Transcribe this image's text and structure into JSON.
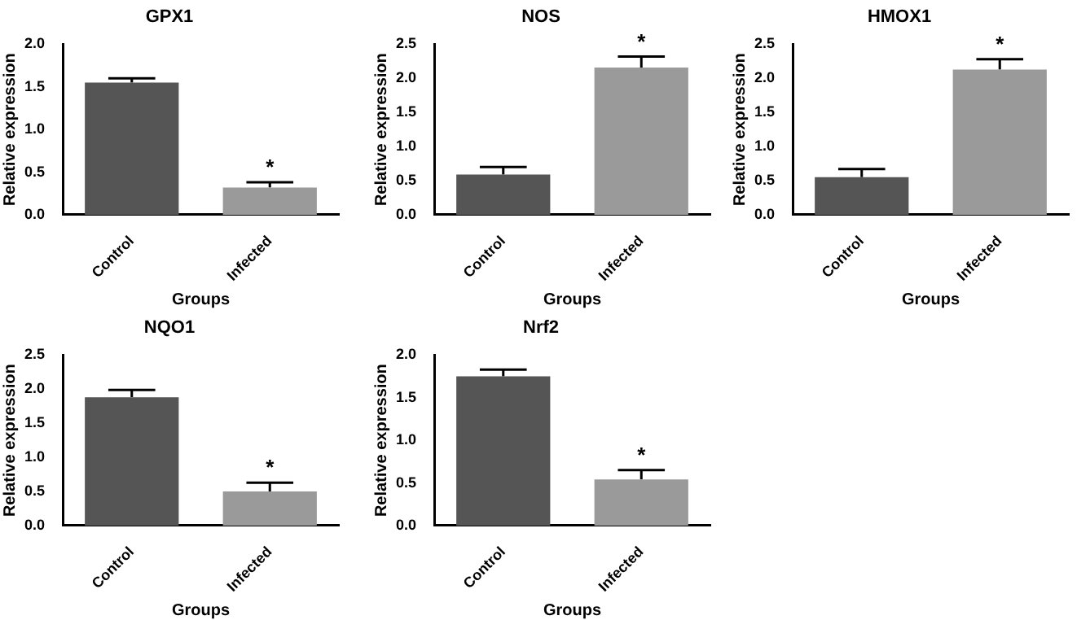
{
  "chart_data": [
    {
      "type": "bar",
      "title": "GPX1",
      "xlabel": "Groups",
      "ylabel": "Relative expression",
      "categories": [
        "Control",
        "Infected"
      ],
      "values": [
        1.55,
        0.32
      ],
      "errors": [
        0.05,
        0.06
      ],
      "colors": [
        "#555555",
        "#9a9a9a"
      ],
      "ylim": [
        0,
        2
      ],
      "yticks": [
        {
          "value": 0,
          "label": "0.0"
        },
        {
          "value": 0.5,
          "label": "0.5"
        },
        {
          "value": 1,
          "label": "1.0"
        },
        {
          "value": 1.5,
          "label": "1.5"
        },
        {
          "value": 2,
          "label": "2.0"
        }
      ],
      "annotations": [
        {
          "text": "*",
          "x": "Infected",
          "y": 0.38
        }
      ]
    },
    {
      "type": "bar",
      "title": "NOS",
      "xlabel": "Groups",
      "ylabel": "Relative expression",
      "categories": [
        "Control",
        "Infected"
      ],
      "values": [
        0.59,
        2.16
      ],
      "errors": [
        0.11,
        0.16
      ],
      "colors": [
        "#555555",
        "#9a9a9a"
      ],
      "ylim": [
        0,
        2.5
      ],
      "yticks": [
        {
          "value": 0,
          "label": "0.0"
        },
        {
          "value": 0.5,
          "label": "0.5"
        },
        {
          "value": 1,
          "label": "1.0"
        },
        {
          "value": 1.5,
          "label": "1.5"
        },
        {
          "value": 2,
          "label": "2.0"
        },
        {
          "value": 2.5,
          "label": "2.5"
        }
      ],
      "annotations": [
        {
          "text": "*",
          "x": "Infected",
          "y": 2.32
        }
      ]
    },
    {
      "type": "bar",
      "title": "HMOX1",
      "xlabel": "Groups",
      "ylabel": "Relative expression",
      "categories": [
        "Control",
        "Infected"
      ],
      "values": [
        0.55,
        2.13
      ],
      "errors": [
        0.12,
        0.15
      ],
      "colors": [
        "#555555",
        "#9a9a9a"
      ],
      "ylim": [
        0,
        2.5
      ],
      "yticks": [
        {
          "value": 0,
          "label": "0.0"
        },
        {
          "value": 0.5,
          "label": "0.5"
        },
        {
          "value": 1,
          "label": "1.0"
        },
        {
          "value": 1.5,
          "label": "1.5"
        },
        {
          "value": 2,
          "label": "2.0"
        },
        {
          "value": 2.5,
          "label": "2.5"
        }
      ],
      "annotations": [
        {
          "text": "*",
          "x": "Infected",
          "y": 2.28
        }
      ]
    },
    {
      "type": "bar",
      "title": "NQO1",
      "xlabel": "Groups",
      "ylabel": "Relative expression",
      "categories": [
        "Control",
        "Infected"
      ],
      "values": [
        1.88,
        0.5
      ],
      "errors": [
        0.11,
        0.13
      ],
      "colors": [
        "#555555",
        "#9a9a9a"
      ],
      "ylim": [
        0,
        2.5
      ],
      "yticks": [
        {
          "value": 0,
          "label": "0.0"
        },
        {
          "value": 0.5,
          "label": "0.5"
        },
        {
          "value": 1,
          "label": "1.0"
        },
        {
          "value": 1.5,
          "label": "1.5"
        },
        {
          "value": 2,
          "label": "2.0"
        },
        {
          "value": 2.5,
          "label": "2.5"
        }
      ],
      "annotations": [
        {
          "text": "*",
          "x": "Infected",
          "y": 0.63
        }
      ]
    },
    {
      "type": "bar",
      "title": "Nrf2",
      "xlabel": "Groups",
      "ylabel": "Relative expression",
      "categories": [
        "Control",
        "Infected"
      ],
      "values": [
        1.75,
        0.54
      ],
      "errors": [
        0.08,
        0.11
      ],
      "colors": [
        "#555555",
        "#9a9a9a"
      ],
      "ylim": [
        0,
        2
      ],
      "yticks": [
        {
          "value": 0,
          "label": "0.0"
        },
        {
          "value": 0.5,
          "label": "0.5"
        },
        {
          "value": 1,
          "label": "1.0"
        },
        {
          "value": 1.5,
          "label": "1.5"
        },
        {
          "value": 2,
          "label": "2.0"
        }
      ],
      "annotations": [
        {
          "text": "*",
          "x": "Infected",
          "y": 0.65
        }
      ]
    }
  ]
}
